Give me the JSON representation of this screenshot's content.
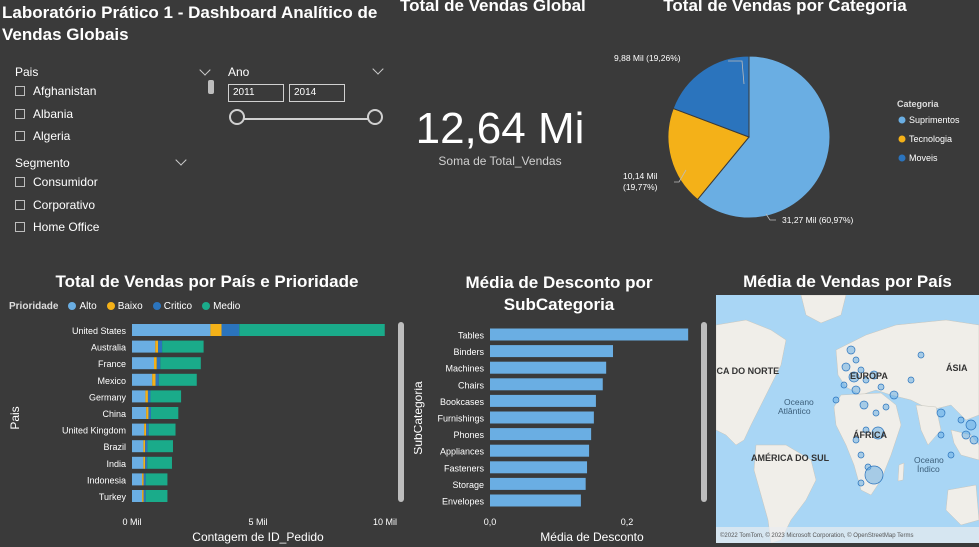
{
  "dashboard_title": "Laboratório Prático 1 - Dashboard Analítico de Vendas Globais",
  "slicers": {
    "pais": {
      "header": "Pais",
      "items": [
        "Afghanistan",
        "Albania",
        "Algeria"
      ]
    },
    "ano": {
      "header": "Ano",
      "from": "2011",
      "to": "2014"
    },
    "segmento": {
      "header": "Segmento",
      "items": [
        "Consumidor",
        "Corporativo",
        "Home Office"
      ]
    }
  },
  "kpi": {
    "title": "Total de Vendas Global",
    "value": "12,64 Mi",
    "label": "Soma de Total_Vendas"
  },
  "colors": {
    "alto": "#6aaee3",
    "baixo": "#f4b118",
    "critico": "#2b74bd",
    "medio": "#1aab8a",
    "bar_blue": "#6aaee3",
    "map_water": "#a9d6f5",
    "map_land": "#f0eee9"
  },
  "pie_chart": {
    "title": "Total de Vendas por Categoria",
    "legend_title": "Categoria",
    "legend": [
      "Suprimentos",
      "Tecnologia",
      "Moveis"
    ],
    "labels": [
      "31,27 Mil (60,97%)",
      "10,14 Mil",
      "(19,77%)",
      "9,88 Mil (19,26%)"
    ]
  },
  "stacked_chart": {
    "title": "Total de Vendas por País e Prioridade",
    "legend_title": "Prioridade",
    "legend": [
      "Alto",
      "Baixo",
      "Critico",
      "Medio"
    ],
    "xlabel": "Contagem de ID_Pedido",
    "ylabel": "Pais",
    "xticks": [
      "0 Mil",
      "5 Mil",
      "10 Mil"
    ]
  },
  "bar_chart": {
    "title_line1": "Média de Desconto por",
    "title_line2": "SubCategoria",
    "xlabel": "Média de Desconto",
    "ylabel": "SubCategoria",
    "xticks": [
      "0,0",
      "0,2"
    ]
  },
  "map": {
    "title": "Média de Vendas por País",
    "labels": [
      "ICA DO NORTE",
      "EUROPA",
      "ÁSIA",
      "Oceano Atlântico",
      "ÁFRICA",
      "AMÉRICA DO SUL",
      "Oceano Índico"
    ],
    "copyright": "©2022 TomTom, © 2023 Microsoft Corporation, © OpenStreetMap  Terms"
  },
  "chart_data": [
    {
      "type": "pie",
      "title": "Total de Vendas por Categoria",
      "legend_title": "Categoria",
      "slices": [
        {
          "name": "Suprimentos",
          "value": 31.27,
          "percent": 60.97,
          "color": "#6aaee3"
        },
        {
          "name": "Tecnologia",
          "value": 10.14,
          "percent": 19.77,
          "color": "#f4b118"
        },
        {
          "name": "Moveis",
          "value": 9.88,
          "percent": 19.26,
          "color": "#2b74bd"
        }
      ]
    },
    {
      "type": "bar",
      "orientation": "horizontal",
      "stacked": true,
      "title": "Total de Vendas por País e Prioridade",
      "categories": [
        "United States",
        "Australia",
        "France",
        "Mexico",
        "Germany",
        "China",
        "United Kingdom",
        "Brazil",
        "India",
        "Indonesia",
        "Turkey"
      ],
      "series": [
        {
          "name": "Alto",
          "values": [
            3100,
            920,
            870,
            800,
            530,
            560,
            480,
            450,
            450,
            400,
            400
          ]
        },
        {
          "name": "Baixo",
          "values": [
            440,
            110,
            110,
            130,
            100,
            90,
            80,
            70,
            70,
            60,
            60
          ]
        },
        {
          "name": "Critico",
          "values": [
            700,
            160,
            140,
            130,
            100,
            100,
            100,
            90,
            80,
            80,
            80
          ]
        },
        {
          "name": "Medio",
          "values": [
            5750,
            1640,
            1600,
            1500,
            1210,
            1080,
            1060,
            1010,
            980,
            860,
            860
          ]
        }
      ],
      "xlim": [
        0,
        10000
      ]
    },
    {
      "type": "bar",
      "orientation": "horizontal",
      "title": "Média de Desconto por SubCategoria",
      "categories": [
        "Tables",
        "Binders",
        "Machines",
        "Chairs",
        "Bookcases",
        "Furnishings",
        "Phones",
        "Appliances",
        "Fasteners",
        "Storage",
        "Envelopes"
      ],
      "values": [
        0.29,
        0.18,
        0.17,
        0.165,
        0.155,
        0.152,
        0.148,
        0.145,
        0.142,
        0.14,
        0.133
      ],
      "xlim": [
        0,
        0.3
      ]
    }
  ]
}
